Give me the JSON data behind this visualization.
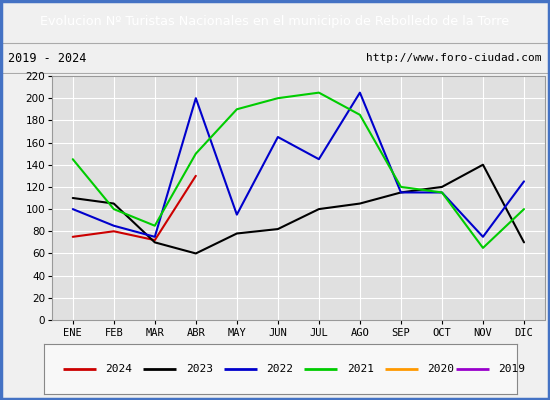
{
  "title": "Evolucion Nº Turistas Nacionales en el municipio de Rebolledo de la Torre",
  "subtitle_left": "2019 - 2024",
  "subtitle_right": "http://www.foro-ciudad.com",
  "months": [
    "ENE",
    "FEB",
    "MAR",
    "ABR",
    "MAY",
    "JUN",
    "JUL",
    "AGO",
    "SEP",
    "OCT",
    "NOV",
    "DIC"
  ],
  "series_order": [
    "2024",
    "2023",
    "2022",
    "2021",
    "2020",
    "2019"
  ],
  "series_values": {
    "2024": [
      75,
      80,
      72,
      130,
      null,
      null,
      null,
      null,
      null,
      null,
      null,
      null
    ],
    "2023": [
      110,
      105,
      70,
      60,
      78,
      82,
      100,
      105,
      115,
      120,
      140,
      70
    ],
    "2022": [
      100,
      85,
      75,
      200,
      95,
      165,
      145,
      205,
      115,
      115,
      75,
      125
    ],
    "2021": [
      145,
      100,
      85,
      150,
      190,
      200,
      205,
      185,
      120,
      115,
      65,
      100
    ],
    "2020": [
      null,
      null,
      null,
      null,
      null,
      null,
      null,
      null,
      null,
      null,
      null,
      null
    ],
    "2019": [
      null,
      null,
      null,
      null,
      null,
      null,
      null,
      null,
      null,
      null,
      null,
      null
    ]
  },
  "series_colors": {
    "2024": "#cc0000",
    "2023": "#000000",
    "2022": "#0000cc",
    "2021": "#00cc00",
    "2020": "#ff9900",
    "2019": "#9900cc"
  },
  "ylim": [
    0,
    220
  ],
  "yticks": [
    0,
    20,
    40,
    60,
    80,
    100,
    120,
    140,
    160,
    180,
    200,
    220
  ],
  "title_bg_color": "#4472c4",
  "title_font_color": "#ffffff",
  "plot_bg_color": "#e0e0e0",
  "grid_color": "#ffffff",
  "border_color": "#4472c4",
  "fig_bg_color": "#f0f0f0"
}
